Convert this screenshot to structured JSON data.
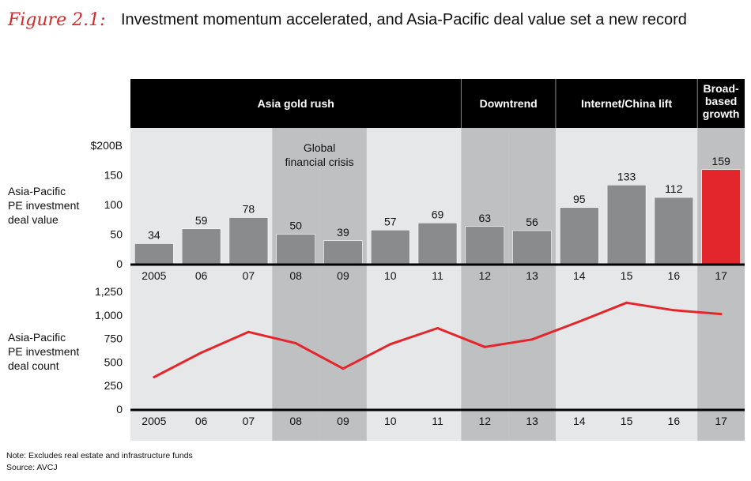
{
  "figure_label": "Figure 2.1:",
  "title": "Investment momentum accelerated, and Asia-Pacific deal value set a new record",
  "eras": [
    {
      "label": "Asia gold rush",
      "from": 0,
      "to": 6
    },
    {
      "label": "Downtrend",
      "from": 7,
      "to": 8
    },
    {
      "label": "Internet/China lift",
      "from": 9,
      "to": 11
    },
    {
      "label": "Broad-based growth",
      "lines": [
        "Broad-",
        "based",
        "growth"
      ],
      "from": 12,
      "to": 12
    }
  ],
  "annotation": {
    "lines": [
      "Global",
      "financial crisis"
    ]
  },
  "note": "Note: Excludes real estate and infrastructure funds",
  "source": "Source: AVCJ",
  "colors": {
    "bar": "#8a8b8d",
    "highlight": "#e3262b",
    "line": "#e3262b",
    "band_dark": "#bfc0c2",
    "band_light": "#e6e7e8",
    "header": "#000000"
  },
  "chart_data": [
    {
      "type": "bar",
      "title": "",
      "ylabel_lines": [
        "Asia-Pacific",
        "PE investment",
        "deal value"
      ],
      "categories": [
        "2005",
        "06",
        "07",
        "08",
        "09",
        "10",
        "11",
        "12",
        "13",
        "14",
        "15",
        "16",
        "17"
      ],
      "values": [
        34,
        59,
        78,
        50,
        39,
        57,
        69,
        63,
        56,
        95,
        133,
        112,
        159
      ],
      "highlight_index": 12,
      "ylim": [
        0,
        200
      ],
      "yticks": [
        0,
        50,
        100,
        150,
        200
      ],
      "ytick_labels": [
        "0",
        "50",
        "100",
        "150",
        "$200B"
      ]
    },
    {
      "type": "line",
      "ylabel_lines": [
        "Asia-Pacific",
        "PE investment",
        "deal count"
      ],
      "categories": [
        "2005",
        "06",
        "07",
        "08",
        "09",
        "10",
        "11",
        "12",
        "13",
        "14",
        "15",
        "16",
        "17"
      ],
      "values": [
        340,
        600,
        820,
        700,
        430,
        690,
        860,
        660,
        740,
        930,
        1130,
        1050,
        1010
      ],
      "ylim": [
        0,
        1250
      ],
      "yticks": [
        0,
        250,
        500,
        750,
        1000,
        1250
      ],
      "ytick_labels": [
        "0",
        "250",
        "500",
        "750",
        "1,000",
        "1,250"
      ]
    }
  ]
}
